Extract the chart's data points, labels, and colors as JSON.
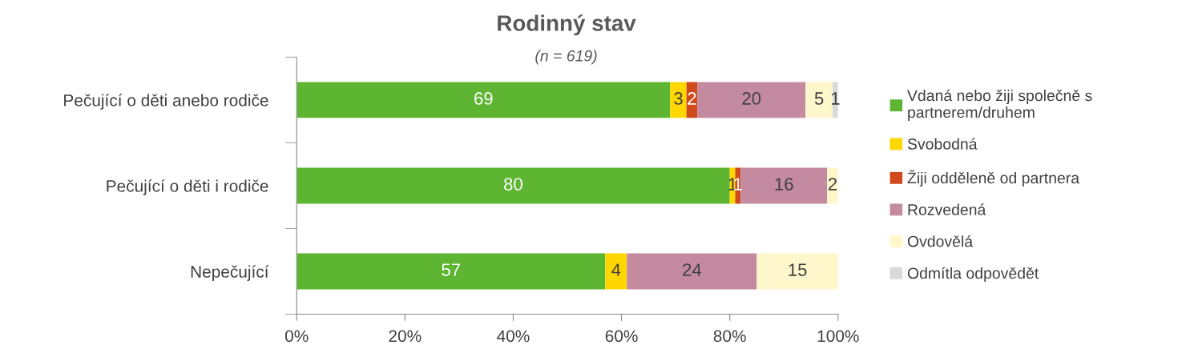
{
  "chart_data": {
    "type": "bar",
    "orientation": "horizontal",
    "stacked": true,
    "title": "Rodinný stav",
    "subtitle": "(n = 619)",
    "categories": [
      "Pečující o děti anebo rodiče",
      "Pečující o děti i rodiče",
      "Nepečující"
    ],
    "series": [
      {
        "name": "Vdaná nebo žiji společně s\npartnerem/druhem",
        "color": "#5db531",
        "values": [
          69,
          80,
          57
        ]
      },
      {
        "name": "Svobodná",
        "color": "#ffd700",
        "values": [
          3,
          1,
          4
        ]
      },
      {
        "name": "Žiji odděleně od partnera",
        "color": "#d04a1b",
        "values": [
          2,
          1,
          null
        ]
      },
      {
        "name": "Rozvedená",
        "color": "#c48ba0",
        "values": [
          20,
          16,
          24
        ]
      },
      {
        "name": "Ovdovělá",
        "color": "#fff7cc",
        "values": [
          5,
          2,
          15
        ]
      },
      {
        "name": "Odmítla odpovědět",
        "color": "#d9d9d9",
        "values": [
          1,
          null,
          null
        ]
      }
    ],
    "xlim": [
      0,
      100
    ],
    "xticks": [
      {
        "value": 0,
        "label": "0%"
      },
      {
        "value": 20,
        "label": "20%"
      },
      {
        "value": 40,
        "label": "40%"
      },
      {
        "value": 60,
        "label": "60%"
      },
      {
        "value": 80,
        "label": "80%"
      },
      {
        "value": 100,
        "label": "100%"
      }
    ],
    "data_labels": true,
    "grid": false,
    "legend": "right"
  }
}
